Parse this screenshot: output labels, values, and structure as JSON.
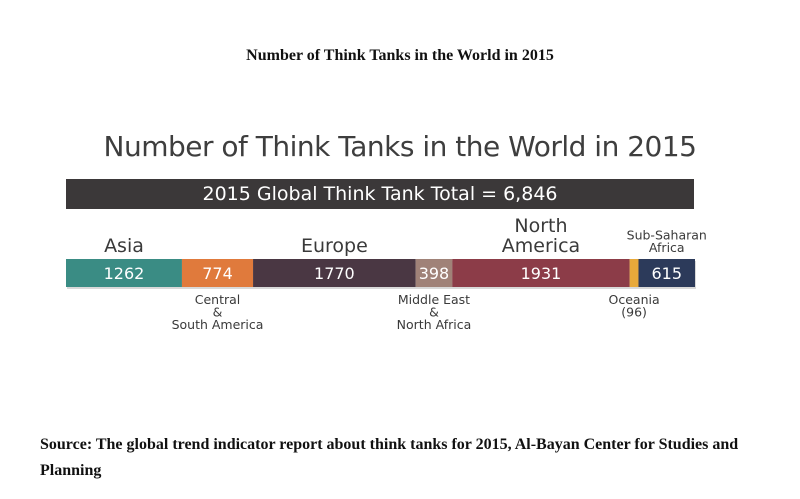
{
  "caption_title": "Number of Think Tanks in the World in 2015",
  "source_text": "Source: The global trend indicator report about think tanks for 2015, Al-Bayan Center for Studies and Planning",
  "chart_data": {
    "type": "bar",
    "orientation": "stacked-horizontal",
    "title": "Number of Think Tanks in the World in 2015",
    "total_label": "2015 Global Think Tank Total = 6,846",
    "total": 6846,
    "categories": [
      "Asia",
      "Central & South America",
      "Europe",
      "Middle East & North Africa",
      "North America",
      "Oceania",
      "Sub-Saharan Africa"
    ],
    "values": [
      1262,
      774,
      1770,
      398,
      1931,
      96,
      615
    ],
    "colors": [
      "#3a8c84",
      "#e07a3c",
      "#4a3743",
      "#a08278",
      "#8c3c48",
      "#e8a93a",
      "#2c3a5a"
    ],
    "labels": [
      {
        "text": [
          "Asia"
        ],
        "position": "above",
        "size": "large"
      },
      {
        "text": [
          "Central",
          "&",
          "South America"
        ],
        "position": "below",
        "size": "small"
      },
      {
        "text": [
          "Europe"
        ],
        "position": "above",
        "size": "large"
      },
      {
        "text": [
          "Middle East",
          "&",
          "North Africa"
        ],
        "position": "below",
        "size": "small"
      },
      {
        "text": [
          "North",
          "America"
        ],
        "position": "above",
        "size": "large"
      },
      {
        "text": [
          "Oceania",
          "(96)"
        ],
        "position": "below",
        "size": "small"
      },
      {
        "text": [
          "Sub-Saharan",
          "Africa"
        ],
        "position": "above",
        "size": "small"
      }
    ],
    "value_labels_shown": [
      true,
      true,
      true,
      true,
      true,
      false,
      true
    ]
  }
}
